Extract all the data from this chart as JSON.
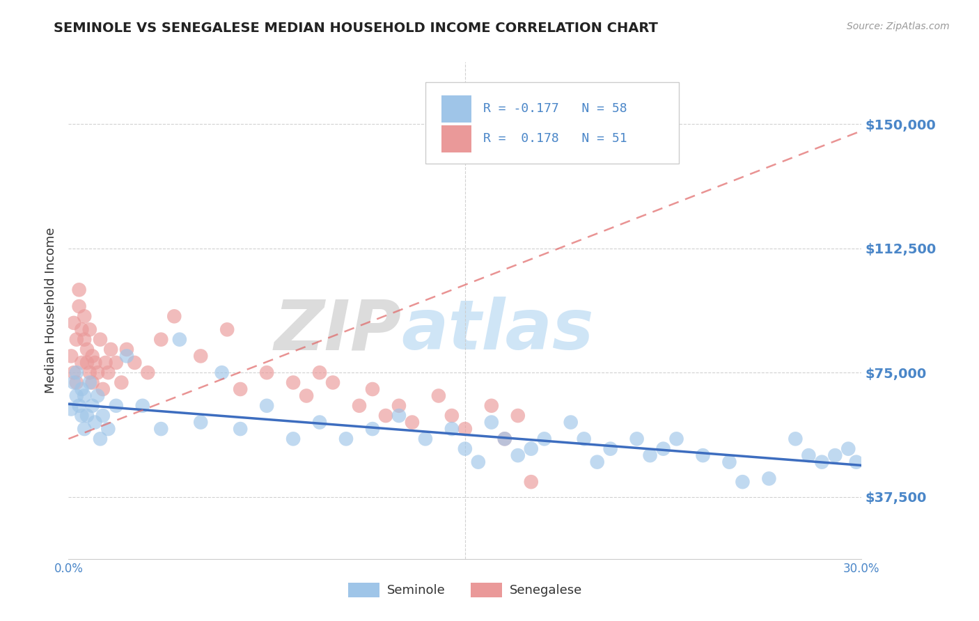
{
  "title": "SEMINOLE VS SENEGALESE MEDIAN HOUSEHOLD INCOME CORRELATION CHART",
  "source_text": "Source: ZipAtlas.com",
  "ylabel": "Median Household Income",
  "xlim": [
    0.0,
    0.3
  ],
  "ylim": [
    18750,
    168750
  ],
  "yticks": [
    37500,
    75000,
    112500,
    150000
  ],
  "ytick_labels": [
    "$37,500",
    "$75,000",
    "$112,500",
    "$150,000"
  ],
  "xticks": [
    0.0,
    0.05,
    0.1,
    0.15,
    0.2,
    0.25,
    0.3
  ],
  "xtick_labels": [
    "0.0%",
    "",
    "",
    "",
    "",
    "",
    "30.0%"
  ],
  "blue_color": "#9fc5e8",
  "pink_color": "#ea9999",
  "blue_line_color": "#3d6dbf",
  "pink_line_color": "#e06666",
  "title_color": "#222222",
  "axis_label_color": "#333333",
  "tick_label_color": "#4a86c8",
  "watermark_zip_color": "#c0c0c0",
  "watermark_atlas_color": "#a8d0f0",
  "grid_color": "#cccccc",
  "background_color": "#ffffff",
  "seminole_x": [
    0.001,
    0.002,
    0.003,
    0.003,
    0.004,
    0.005,
    0.005,
    0.006,
    0.006,
    0.007,
    0.008,
    0.009,
    0.01,
    0.011,
    0.012,
    0.013,
    0.015,
    0.018,
    0.022,
    0.028,
    0.035,
    0.042,
    0.05,
    0.058,
    0.065,
    0.075,
    0.085,
    0.095,
    0.105,
    0.115,
    0.125,
    0.135,
    0.145,
    0.15,
    0.155,
    0.16,
    0.165,
    0.17,
    0.175,
    0.18,
    0.19,
    0.195,
    0.2,
    0.205,
    0.215,
    0.22,
    0.225,
    0.23,
    0.24,
    0.25,
    0.255,
    0.265,
    0.275,
    0.28,
    0.285,
    0.29,
    0.295,
    0.298
  ],
  "seminole_y": [
    64000,
    72000,
    68000,
    75000,
    65000,
    62000,
    70000,
    68000,
    58000,
    62000,
    72000,
    65000,
    60000,
    68000,
    55000,
    62000,
    58000,
    65000,
    80000,
    65000,
    58000,
    85000,
    60000,
    75000,
    58000,
    65000,
    55000,
    60000,
    55000,
    58000,
    62000,
    55000,
    58000,
    52000,
    48000,
    60000,
    55000,
    50000,
    52000,
    55000,
    60000,
    55000,
    48000,
    52000,
    55000,
    50000,
    52000,
    55000,
    50000,
    48000,
    42000,
    43000,
    55000,
    50000,
    48000,
    50000,
    52000,
    48000
  ],
  "senegalese_x": [
    0.001,
    0.002,
    0.002,
    0.003,
    0.003,
    0.004,
    0.004,
    0.005,
    0.005,
    0.006,
    0.006,
    0.007,
    0.007,
    0.008,
    0.008,
    0.009,
    0.009,
    0.01,
    0.011,
    0.012,
    0.013,
    0.014,
    0.015,
    0.016,
    0.018,
    0.02,
    0.022,
    0.025,
    0.03,
    0.035,
    0.04,
    0.05,
    0.06,
    0.065,
    0.075,
    0.085,
    0.09,
    0.095,
    0.1,
    0.11,
    0.115,
    0.12,
    0.125,
    0.13,
    0.14,
    0.145,
    0.15,
    0.16,
    0.165,
    0.17,
    0.175
  ],
  "senegalese_y": [
    80000,
    75000,
    90000,
    85000,
    72000,
    95000,
    100000,
    88000,
    78000,
    85000,
    92000,
    78000,
    82000,
    75000,
    88000,
    80000,
    72000,
    78000,
    75000,
    85000,
    70000,
    78000,
    75000,
    82000,
    78000,
    72000,
    82000,
    78000,
    75000,
    85000,
    92000,
    80000,
    88000,
    70000,
    75000,
    72000,
    68000,
    75000,
    72000,
    65000,
    70000,
    62000,
    65000,
    60000,
    68000,
    62000,
    58000,
    65000,
    55000,
    62000,
    42000
  ],
  "seminole_trend_x0": 0.0,
  "seminole_trend_y0": 65500,
  "seminole_trend_x1": 0.3,
  "seminole_trend_y1": 47000,
  "senegalese_trend_x0": 0.0,
  "senegalese_trend_y0": 55000,
  "senegalese_trend_x1": 0.3,
  "senegalese_trend_y1": 148000
}
